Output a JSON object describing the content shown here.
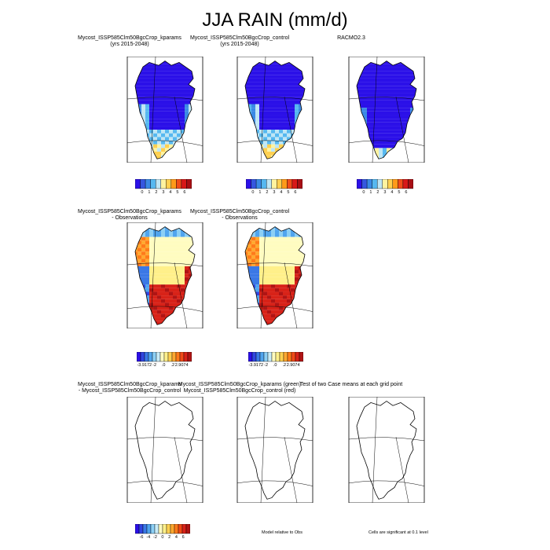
{
  "title": "JJA RAIN (mm/d)",
  "panels": [
    {
      "title1": "Mycost_ISSP585Clm50BgcCrop_kparams",
      "title2": "(yrs 2015-2048)",
      "field": "abs"
    },
    {
      "title1": "Mycost_ISSP585Clm50BgcCrop_control",
      "title2": "(yrs 2015-2048)",
      "field": "abs"
    },
    {
      "title1": "RACMO2.3",
      "title2": "",
      "field": "abs_obs"
    },
    {
      "title1": "Mycost_ISSP585Clm50BgcCrop_kparams",
      "title2": "- Observations",
      "field": "bias"
    },
    {
      "title1": "Mycost_ISSP585Clm50BgcCrop_control",
      "title2": "- Observations",
      "field": "bias"
    },
    {
      "title1": "Mycost_ISSP585Clm50BgcCrop_kparams",
      "title2": "- Mycost_ISSP585Clm50BgcCrop_control",
      "field": "empty"
    },
    {
      "title1": "Mycost_ISSP585Clm50BgcCrop_kparams (green)",
      "title2": "Mycost_ISSP585Clm50BgcCrop_control (red)",
      "field": "empty"
    },
    {
      "title1": "Test of two Case means at each grid point",
      "title2": "",
      "field": "empty"
    }
  ],
  "colorbars": {
    "abs": {
      "labels": [
        "0",
        "1",
        "2",
        "3",
        "4",
        "5",
        "6"
      ],
      "colors": [
        "#2b10e8",
        "#3557e0",
        "#3b8ae6",
        "#56b8f0",
        "#bfe6f5",
        "#fff3a0",
        "#ffd050",
        "#ff9a1a",
        "#f24d1a",
        "#d81818",
        "#a80f14"
      ]
    },
    "bias": {
      "labels": [
        "-3.9172",
        "-2",
        ".0",
        ".2",
        "2.9074"
      ],
      "colors": [
        "#2b10e8",
        "#3045e0",
        "#3a78e6",
        "#4fa4ee",
        "#8ccff5",
        "#c8ecf8",
        "#fffcc0",
        "#fff08a",
        "#ffd050",
        "#ffa830",
        "#ff7a1a",
        "#f04a18",
        "#d82218",
        "#b01414"
      ]
    },
    "diff": {
      "labels": [
        "-6",
        "-4",
        "-2",
        "0",
        "2",
        "4",
        "6"
      ],
      "colors": [
        "#2b10e8",
        "#3045e0",
        "#3a78e6",
        "#4fa4ee",
        "#8ccff5",
        "#c8ecf8",
        "#fffcc0",
        "#fff08a",
        "#ffd050",
        "#ffa830",
        "#ff7a1a",
        "#f04a18",
        "#d82218",
        "#b01414"
      ]
    }
  },
  "notes": {
    "model_relative": "Model relative to Obs",
    "significance": "Cells are significant at 0.1 level"
  },
  "chart_data": {
    "type": "heatmap",
    "title": "JJA RAIN (mm/d)",
    "panels": [
      "Mycost_ISSP585Clm50BgcCrop_kparams (yrs 2015-2048)",
      "Mycost_ISSP585Clm50BgcCrop_control (yrs 2015-2048)",
      "RACMO2.3",
      "Mycost_ISSP585Clm50BgcCrop_kparams - Observations",
      "Mycost_ISSP585Clm50BgcCrop_control - Observations",
      "Mycost_ISSP585Clm50BgcCrop_kparams - Mycost_ISSP585Clm50BgcCrop_control",
      "Mycost_ISSP585Clm50BgcCrop_kparams (green) Mycost_ISSP585Clm50BgcCrop_control (red)",
      "Test of two Case means at each grid point"
    ],
    "abs_range": [
      0,
      6
    ],
    "bias_range": [
      -3.9172,
      2.9074
    ],
    "diff_range": [
      -6,
      6
    ]
  }
}
